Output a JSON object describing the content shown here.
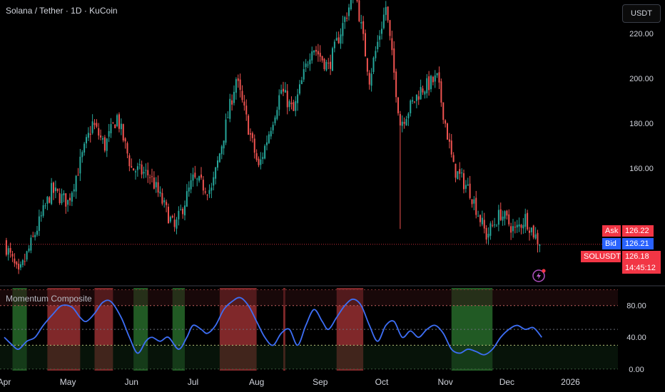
{
  "header": {
    "symbol_title": "Solana / Tether · 1D · KuCoin",
    "currency_button": "USDT"
  },
  "indicator": {
    "title": "Momentum Composite"
  },
  "price_tags": {
    "ask_label": "Ask",
    "ask_value": "126.22",
    "bid_label": "Bid",
    "bid_value": "126.21",
    "symbol_label": "SOLUSDT",
    "last_value": "126.18",
    "countdown": "14:45:12"
  },
  "colors": {
    "up": "#26a69a",
    "down": "#ef5350",
    "oscillator": "#3d6ef5",
    "ask": "#f23645",
    "bid": "#2962ff"
  },
  "chart_data": [
    {
      "type": "candlestick",
      "title": "Solana / Tether · 1D · KuCoin",
      "ylim": [
        108,
        235
      ],
      "y_ticks": [
        160,
        180,
        200,
        220
      ],
      "y_tick_labels": [
        "160.00",
        "180.00",
        "200.00",
        "220.00"
      ],
      "x_tick_labels": [
        "Apr",
        "May",
        "Jun",
        "Jul",
        "Aug",
        "Sep",
        "Oct",
        "Nov",
        "Dec",
        "2026"
      ],
      "last_price": 126.18,
      "close_path": [
        {
          "date": "2025-04-01",
          "close": 125
        },
        {
          "date": "2025-04-07",
          "close": 112
        },
        {
          "date": "2025-04-23",
          "close": 150
        },
        {
          "date": "2025-05-01",
          "close": 145
        },
        {
          "date": "2025-05-13",
          "close": 180
        },
        {
          "date": "2025-05-19",
          "close": 170
        },
        {
          "date": "2025-05-25",
          "close": 183
        },
        {
          "date": "2025-06-01",
          "close": 160
        },
        {
          "date": "2025-06-10",
          "close": 157
        },
        {
          "date": "2025-06-22",
          "close": 133
        },
        {
          "date": "2025-07-01",
          "close": 155
        },
        {
          "date": "2025-07-10",
          "close": 150
        },
        {
          "date": "2025-07-22",
          "close": 200
        },
        {
          "date": "2025-08-02",
          "close": 160
        },
        {
          "date": "2025-08-13",
          "close": 195
        },
        {
          "date": "2025-08-19",
          "close": 185
        },
        {
          "date": "2025-08-28",
          "close": 215
        },
        {
          "date": "2025-09-05",
          "close": 205
        },
        {
          "date": "2025-09-18",
          "close": 240
        },
        {
          "date": "2025-09-25",
          "close": 200
        },
        {
          "date": "2025-10-03",
          "close": 232
        },
        {
          "date": "2025-10-10",
          "close": 180
        },
        {
          "date": "2025-10-20",
          "close": 195
        },
        {
          "date": "2025-10-28",
          "close": 200
        },
        {
          "date": "2025-11-05",
          "close": 160
        },
        {
          "date": "2025-11-13",
          "close": 150
        },
        {
          "date": "2025-11-21",
          "close": 130
        },
        {
          "date": "2025-11-28",
          "close": 140
        },
        {
          "date": "2025-12-05",
          "close": 132
        },
        {
          "date": "2025-12-10",
          "close": 138
        },
        {
          "date": "2025-12-17",
          "close": 126.18
        }
      ]
    },
    {
      "type": "line",
      "title": "Momentum Composite",
      "ylim": [
        -2,
        104
      ],
      "y_ticks": [
        0,
        40,
        80
      ],
      "y_tick_labels": [
        "0.00",
        "40.00",
        "80.00"
      ],
      "reference_levels": [
        100,
        80,
        50,
        30,
        0
      ],
      "series": [
        {
          "values": [
            {
              "date": "2025-03-31",
              "v": 40
            },
            {
              "date": "2025-04-04",
              "v": 30
            },
            {
              "date": "2025-04-07",
              "v": 25
            },
            {
              "date": "2025-04-11",
              "v": 35
            },
            {
              "date": "2025-04-15",
              "v": 40
            },
            {
              "date": "2025-04-19",
              "v": 55
            },
            {
              "date": "2025-04-24",
              "v": 70
            },
            {
              "date": "2025-04-28",
              "v": 80
            },
            {
              "date": "2025-05-03",
              "v": 78
            },
            {
              "date": "2025-05-07",
              "v": 65
            },
            {
              "date": "2025-05-10",
              "v": 60
            },
            {
              "date": "2025-05-14",
              "v": 70
            },
            {
              "date": "2025-05-18",
              "v": 84
            },
            {
              "date": "2025-05-22",
              "v": 85
            },
            {
              "date": "2025-05-27",
              "v": 65
            },
            {
              "date": "2025-05-31",
              "v": 40
            },
            {
              "date": "2025-06-04",
              "v": 20
            },
            {
              "date": "2025-06-08",
              "v": 35
            },
            {
              "date": "2025-06-11",
              "v": 40
            },
            {
              "date": "2025-06-15",
              "v": 35
            },
            {
              "date": "2025-06-19",
              "v": 40
            },
            {
              "date": "2025-06-24",
              "v": 25
            },
            {
              "date": "2025-06-28",
              "v": 40
            },
            {
              "date": "2025-07-01",
              "v": 55
            },
            {
              "date": "2025-07-05",
              "v": 50
            },
            {
              "date": "2025-07-08",
              "v": 45
            },
            {
              "date": "2025-07-12",
              "v": 55
            },
            {
              "date": "2025-07-16",
              "v": 75
            },
            {
              "date": "2025-07-20",
              "v": 85
            },
            {
              "date": "2025-07-24",
              "v": 90
            },
            {
              "date": "2025-07-28",
              "v": 80
            },
            {
              "date": "2025-08-01",
              "v": 60
            },
            {
              "date": "2025-08-05",
              "v": 40
            },
            {
              "date": "2025-08-09",
              "v": 30
            },
            {
              "date": "2025-08-13",
              "v": 45
            },
            {
              "date": "2025-08-17",
              "v": 50
            },
            {
              "date": "2025-08-21",
              "v": 30
            },
            {
              "date": "2025-08-25",
              "v": 55
            },
            {
              "date": "2025-08-29",
              "v": 75
            },
            {
              "date": "2025-09-02",
              "v": 60
            },
            {
              "date": "2025-09-05",
              "v": 50
            },
            {
              "date": "2025-09-09",
              "v": 65
            },
            {
              "date": "2025-09-13",
              "v": 80
            },
            {
              "date": "2025-09-17",
              "v": 88
            },
            {
              "date": "2025-09-21",
              "v": 80
            },
            {
              "date": "2025-09-25",
              "v": 55
            },
            {
              "date": "2025-09-29",
              "v": 35
            },
            {
              "date": "2025-10-03",
              "v": 55
            },
            {
              "date": "2025-10-07",
              "v": 60
            },
            {
              "date": "2025-10-11",
              "v": 40
            },
            {
              "date": "2025-10-15",
              "v": 48
            },
            {
              "date": "2025-10-19",
              "v": 40
            },
            {
              "date": "2025-10-23",
              "v": 50
            },
            {
              "date": "2025-10-27",
              "v": 55
            },
            {
              "date": "2025-10-31",
              "v": 45
            },
            {
              "date": "2025-11-04",
              "v": 25
            },
            {
              "date": "2025-11-08",
              "v": 20
            },
            {
              "date": "2025-11-12",
              "v": 25
            },
            {
              "date": "2025-11-16",
              "v": 22
            },
            {
              "date": "2025-11-20",
              "v": 18
            },
            {
              "date": "2025-11-24",
              "v": 25
            },
            {
              "date": "2025-11-28",
              "v": 40
            },
            {
              "date": "2025-12-02",
              "v": 50
            },
            {
              "date": "2025-12-06",
              "v": 55
            },
            {
              "date": "2025-12-10",
              "v": 50
            },
            {
              "date": "2025-12-14",
              "v": 52
            },
            {
              "date": "2025-12-18",
              "v": 40
            }
          ]
        }
      ],
      "bands": [
        {
          "from": "2025-04-04",
          "to": "2025-04-11",
          "state": "oversold"
        },
        {
          "from": "2025-04-21",
          "to": "2025-05-07",
          "state": "overbought"
        },
        {
          "from": "2025-05-14",
          "to": "2025-05-23",
          "state": "overbought"
        },
        {
          "from": "2025-06-02",
          "to": "2025-06-09",
          "state": "oversold"
        },
        {
          "from": "2025-06-21",
          "to": "2025-06-27",
          "state": "oversold"
        },
        {
          "from": "2025-07-14",
          "to": "2025-08-01",
          "state": "overbought"
        },
        {
          "from": "2025-08-14",
          "to": "2025-08-15",
          "state": "overbought"
        },
        {
          "from": "2025-09-09",
          "to": "2025-09-22",
          "state": "overbought"
        },
        {
          "from": "2025-11-04",
          "to": "2025-11-24",
          "state": "oversold"
        }
      ]
    }
  ]
}
